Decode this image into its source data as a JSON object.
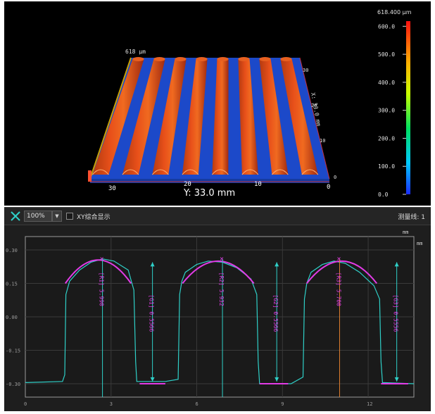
{
  "view3d": {
    "width_label": "618 µm",
    "y_label": "Y: 33.0 mm",
    "x_ticks": [
      "30",
      "20",
      "10",
      "0"
    ],
    "side_label": "X: 33.0 mm",
    "side_ticks": [
      "0",
      "10",
      "20",
      "30"
    ]
  },
  "colorbar": {
    "max_label": "618.400 µm",
    "ticks": [
      "600.0",
      "500.0",
      "400.0",
      "300.0",
      "200.0",
      "100.0",
      "0.0"
    ],
    "tick_values": [
      600,
      500,
      400,
      300,
      200,
      100,
      0
    ],
    "range": [
      0,
      618.4
    ]
  },
  "toolbar": {
    "zoom_value": "100%",
    "xy_overlay_label": "XY综合显示",
    "measure_lines": "测量线: 1"
  },
  "profile": {
    "unit_top": "mm",
    "unit_right": "mm",
    "y_ticks": [
      "0.30",
      "0.15",
      "0.00",
      "-0.15",
      "-0.30"
    ],
    "y_tick_values": [
      0.3,
      0.15,
      0.0,
      -0.15,
      -0.3
    ],
    "x_ticks": [
      "0",
      "3",
      "6",
      "9",
      "12"
    ],
    "x_tick_values": [
      0,
      3,
      6,
      9,
      12
    ],
    "xlim": [
      0,
      13.6
    ],
    "ylim": [
      -0.36,
      0.36
    ],
    "labels": {
      "r1": "[R1] 5.990",
      "g1": "[G1] 0.5566",
      "r2": "[R2] 5.932",
      "g2": "[G2] 0.5566",
      "r3": "[R3] 5.700",
      "g3": "[G3] 0.5556"
    },
    "colors": {
      "profile": "#2fd0c8",
      "arc": "#e23be6",
      "grid": "#3a3a3a",
      "axis": "#9a9a9a"
    }
  },
  "chart_data": {
    "type": "line",
    "xlabel": "mm",
    "ylabel": "mm",
    "xlim": [
      0,
      13.6
    ],
    "ylim": [
      -0.36,
      0.36
    ],
    "series": [
      {
        "x": [
          0,
          1.3,
          1.38,
          1.42,
          1.55,
          1.9,
          2.3,
          2.7,
          3.1,
          3.6,
          3.8,
          3.86,
          3.9,
          4.9,
          5.35,
          5.4,
          5.48,
          5.6,
          6.0,
          6.4,
          6.9,
          7.4,
          7.9,
          8.1,
          8.15,
          8.2,
          9.3,
          9.72,
          9.77,
          9.85,
          10.0,
          10.4,
          10.8,
          11.2,
          11.7,
          12.2,
          12.4,
          12.45,
          12.5,
          13.6
        ],
        "y": [
          -0.295,
          -0.29,
          -0.26,
          0.1,
          0.16,
          0.21,
          0.245,
          0.26,
          0.25,
          0.21,
          0.12,
          -0.2,
          -0.29,
          -0.29,
          -0.28,
          0.1,
          0.16,
          0.2,
          0.235,
          0.25,
          0.245,
          0.22,
          0.17,
          0.1,
          -0.2,
          -0.3,
          -0.3,
          -0.27,
          0.08,
          0.15,
          0.2,
          0.235,
          0.25,
          0.24,
          0.2,
          0.14,
          0.08,
          -0.2,
          -0.295,
          -0.3
        ]
      }
    ],
    "measurements": [
      {
        "label": "[R1] 5.990",
        "x": 2.7
      },
      {
        "label": "[G1] 0.5566",
        "x": 4.45
      },
      {
        "label": "[R2] 5.932",
        "x": 6.9
      },
      {
        "label": "[G2] 0.5566",
        "x": 8.8
      },
      {
        "label": "[R3] 5.700",
        "x": 11.0
      },
      {
        "label": "[G3] 0.5556",
        "x": 13.0
      }
    ]
  }
}
